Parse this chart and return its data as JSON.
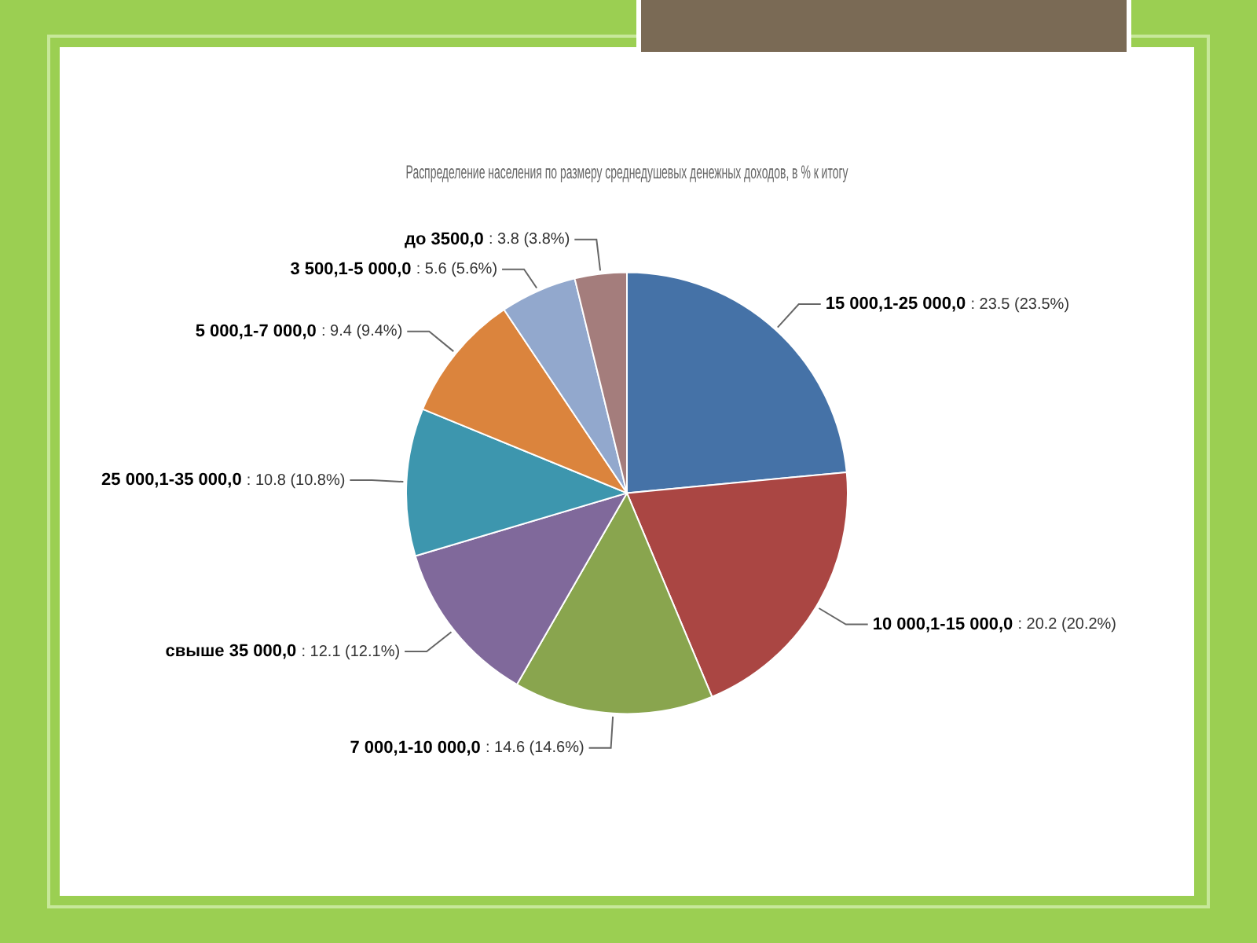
{
  "chart_data": {
    "type": "pie",
    "title": "Распределение населения по размеру среднедушевых денежных доходов, в % к итогу",
    "categories": [
      "15 000,1-25 000,0",
      "10 000,1-15 000,0",
      "7 000,1-10 000,0",
      "свыше 35 000,0",
      "25 000,1-35 000,0",
      "5 000,1-7 000,0",
      "3 500,1-5 000,0",
      "до 3500,0"
    ],
    "values": [
      23.5,
      20.2,
      14.6,
      12.1,
      10.8,
      9.4,
      5.6,
      3.8
    ],
    "colors": [
      "#4572a7",
      "#aa4643",
      "#89a54e",
      "#80699b",
      "#3d96ae",
      "#db843d",
      "#92a8cd",
      "#a47d7c"
    ],
    "value_labels": [
      ": 23.5 (23.5%)",
      ": 20.2 (20.2%)",
      ": 14.6 (14.6%)",
      ": 12.1 (12.1%)",
      ": 10.8 (10.8%)",
      ": 9.4 (9.4%)",
      ": 5.6 (5.6%)",
      ": 3.8 (3.8%)"
    ],
    "legend": false
  }
}
